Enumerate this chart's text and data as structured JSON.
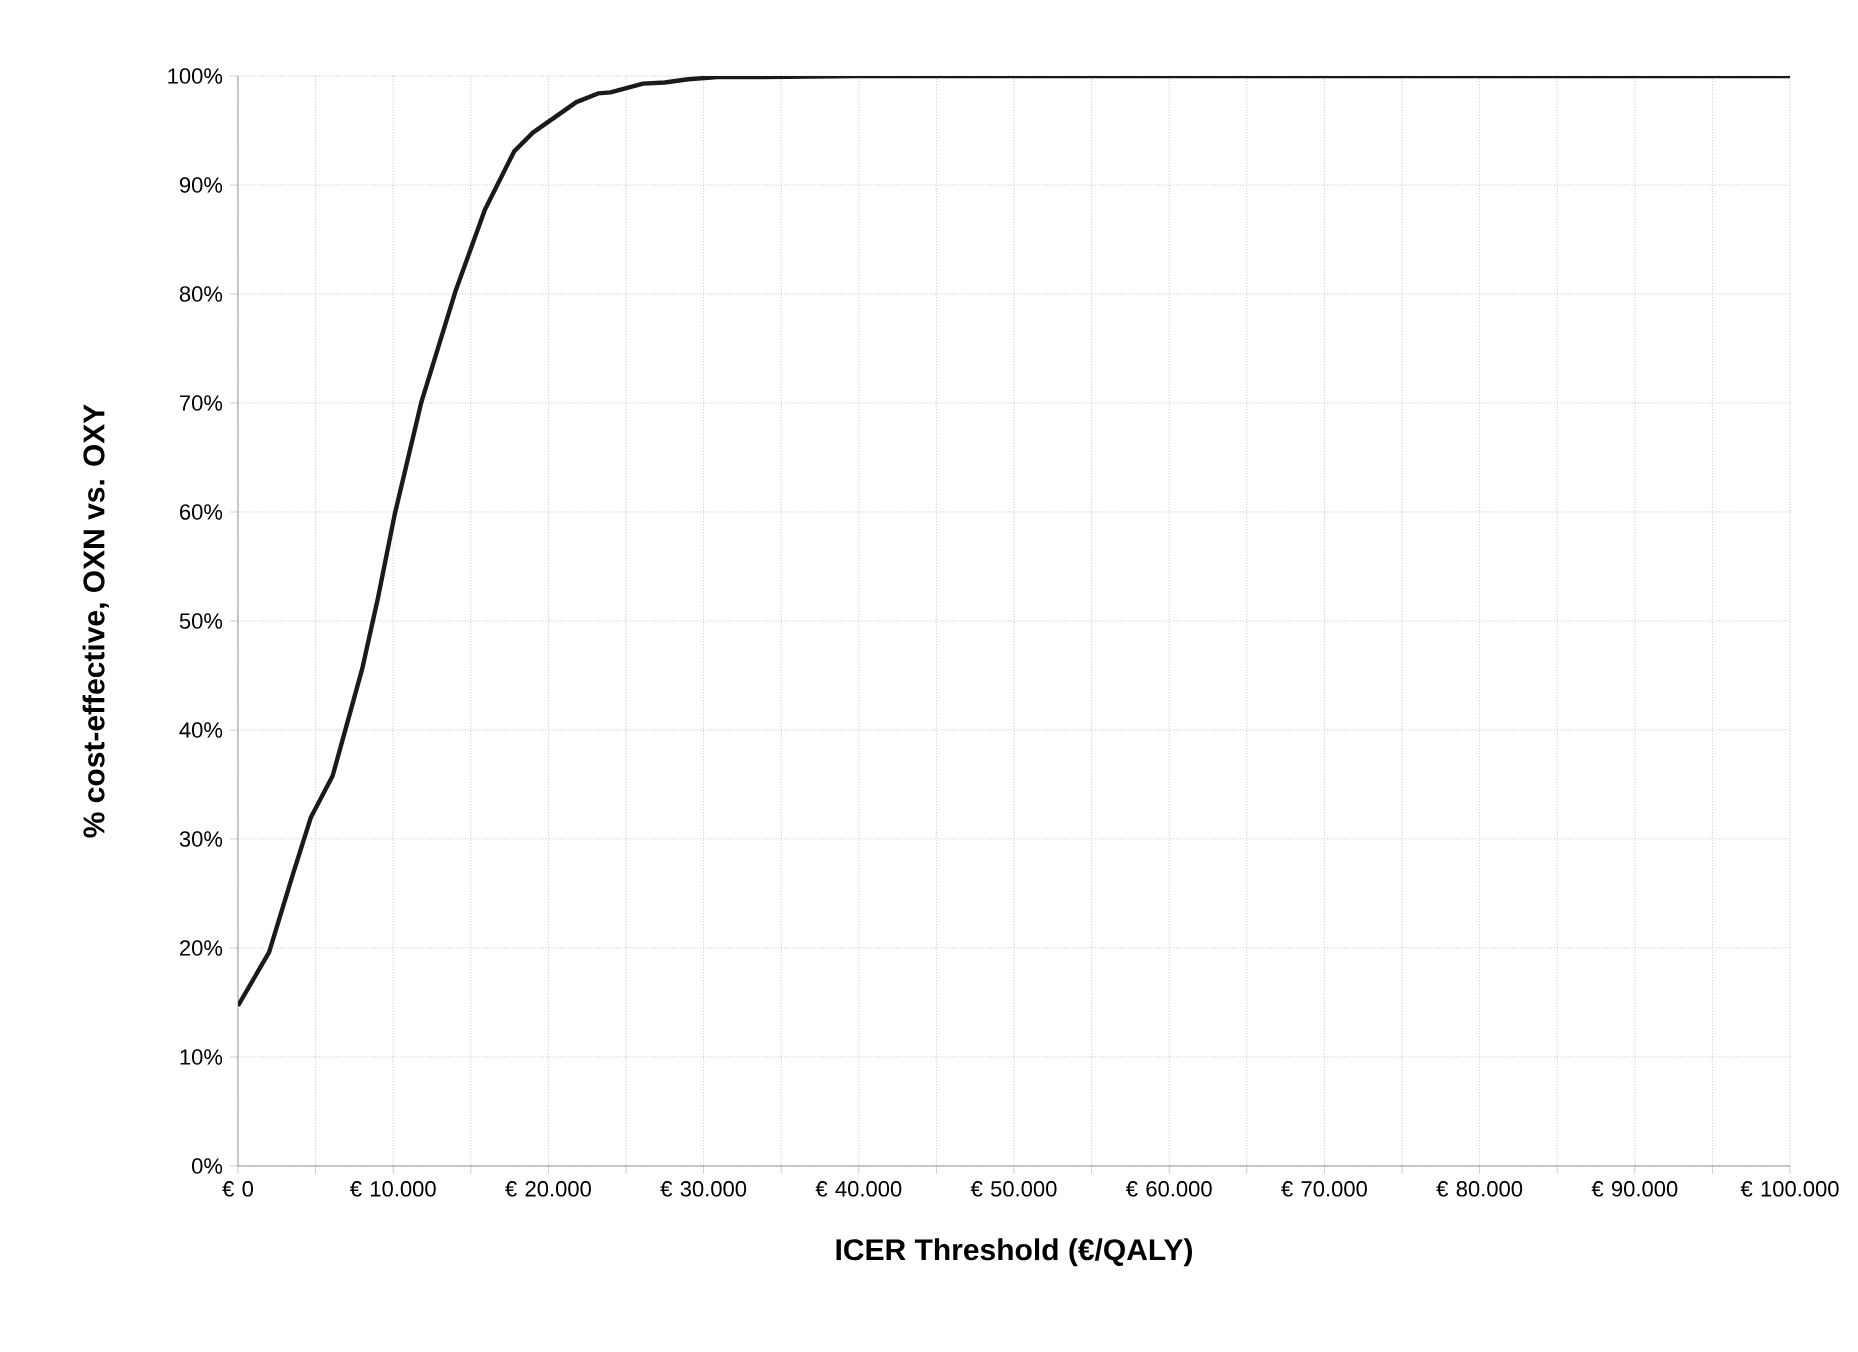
{
  "chart_data": {
    "type": "line",
    "xlabel": "ICER Threshold (€/QALY)",
    "ylabel": "% cost-effective, OXN vs. OXY",
    "x": [
      0,
      2000,
      3500,
      4700,
      6100,
      8000,
      9000,
      10100,
      11800,
      14000,
      15900,
      17800,
      19000,
      21800,
      23200,
      24000,
      26100,
      27500,
      29000,
      30900,
      33700,
      40000,
      50000,
      60000,
      70000,
      80000,
      90000,
      100000
    ],
    "series": [
      {
        "color": "#1a1a1a",
        "values": [
          14.7,
          19.6,
          26.6,
          32.0,
          35.8,
          45.6,
          52.0,
          59.8,
          70.0,
          80.2,
          87.7,
          93.1,
          94.8,
          97.6,
          98.4,
          98.5,
          99.3,
          99.4,
          99.7,
          99.9,
          99.9,
          100,
          100,
          100,
          100,
          100,
          100,
          100
        ]
      }
    ],
    "xlim": [
      0,
      100000
    ],
    "ylim": [
      0,
      100
    ],
    "xticks": [
      {
        "value": 0,
        "label": "€ 0"
      },
      {
        "value": 5000,
        "label": null
      },
      {
        "value": 10000,
        "label": "€ 10.000"
      },
      {
        "value": 15000,
        "label": null
      },
      {
        "value": 20000,
        "label": "€ 20.000"
      },
      {
        "value": 25000,
        "label": null
      },
      {
        "value": 30000,
        "label": "€ 30.000"
      },
      {
        "value": 35000,
        "label": null
      },
      {
        "value": 40000,
        "label": "€ 40.000"
      },
      {
        "value": 45000,
        "label": null
      },
      {
        "value": 50000,
        "label": "€ 50.000"
      },
      {
        "value": 55000,
        "label": null
      },
      {
        "value": 60000,
        "label": "€ 60.000"
      },
      {
        "value": 65000,
        "label": null
      },
      {
        "value": 70000,
        "label": "€ 70.000"
      },
      {
        "value": 75000,
        "label": null
      },
      {
        "value": 80000,
        "label": "€ 80.000"
      },
      {
        "value": 85000,
        "label": null
      },
      {
        "value": 90000,
        "label": "€ 90.000"
      },
      {
        "value": 95000,
        "label": null
      },
      {
        "value": 100000,
        "label": "€ 100.000"
      }
    ],
    "yticks": [
      {
        "value": 0,
        "label": "0%"
      },
      {
        "value": 10,
        "label": "10%"
      },
      {
        "value": 20,
        "label": "20%"
      },
      {
        "value": 30,
        "label": "30%"
      },
      {
        "value": 40,
        "label": "40%"
      },
      {
        "value": 50,
        "label": "50%"
      },
      {
        "value": 60,
        "label": "60%"
      },
      {
        "value": 70,
        "label": "70%"
      },
      {
        "value": 80,
        "label": "80%"
      },
      {
        "value": 90,
        "label": "90%"
      },
      {
        "value": 100,
        "label": "100%"
      }
    ],
    "grid": true,
    "marker": "none",
    "line_style": "solid"
  }
}
